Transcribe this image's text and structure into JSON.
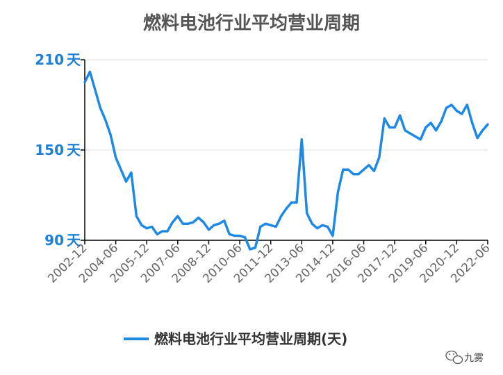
{
  "chart_data": {
    "type": "line",
    "title": "燃料电池行业平均营业周期",
    "y_unit": "天",
    "ylim": [
      90,
      210
    ],
    "yticks": [
      210,
      150,
      90
    ],
    "x_tick_labels": [
      "2002-12",
      "2004-06",
      "2005-12",
      "2007-06",
      "2008-12",
      "2010-06",
      "2011-12",
      "2013-06",
      "2014-12",
      "2016-06",
      "2017-12",
      "2019-06",
      "2020-12",
      "2022-06"
    ],
    "grid": true,
    "legend_position": "bottom",
    "series": [
      {
        "name": "燃料电池行业平均营业周期(天)",
        "color": "#1e88e5",
        "x": [
          "2002-12",
          "2003-03",
          "2003-06",
          "2003-09",
          "2003-12",
          "2004-03",
          "2004-06",
          "2004-09",
          "2004-12",
          "2005-03",
          "2005-06",
          "2005-09",
          "2005-12",
          "2006-03",
          "2006-06",
          "2006-09",
          "2006-12",
          "2007-03",
          "2007-06",
          "2007-09",
          "2007-12",
          "2008-03",
          "2008-06",
          "2008-09",
          "2008-12",
          "2009-03",
          "2009-06",
          "2009-09",
          "2009-12",
          "2010-03",
          "2010-06",
          "2010-09",
          "2010-12",
          "2011-03",
          "2011-06",
          "2011-09",
          "2011-12",
          "2012-03",
          "2012-06",
          "2012-09",
          "2012-12",
          "2013-03",
          "2013-06",
          "2013-09",
          "2013-12",
          "2014-03",
          "2014-06",
          "2014-09",
          "2014-12",
          "2015-03",
          "2015-06",
          "2015-09",
          "2015-12",
          "2016-03",
          "2016-06",
          "2016-09",
          "2016-12",
          "2017-03",
          "2017-06",
          "2017-09",
          "2017-12",
          "2018-03",
          "2018-06",
          "2018-09",
          "2018-12",
          "2019-03",
          "2019-06",
          "2019-09",
          "2019-12",
          "2020-03",
          "2020-06",
          "2020-09",
          "2020-12",
          "2021-03",
          "2021-06",
          "2021-09",
          "2021-12",
          "2022-03",
          "2022-06"
        ],
        "values": [
          195,
          202,
          190,
          178,
          170,
          160,
          145,
          137,
          129,
          135,
          106,
          100,
          98,
          99,
          94,
          96,
          96,
          102,
          106,
          101,
          101,
          102,
          105,
          102,
          97,
          100,
          101,
          103,
          94,
          93,
          93,
          92,
          84,
          85,
          99,
          101,
          100,
          99,
          106,
          111,
          115,
          115,
          157,
          108,
          101,
          98,
          100,
          99,
          93,
          122,
          137,
          137,
          134,
          134,
          137,
          140,
          136,
          145,
          171,
          165,
          165,
          173,
          163,
          161,
          159,
          157,
          165,
          168,
          163,
          169,
          178,
          180,
          176,
          174,
          180,
          168,
          158,
          163,
          167
        ]
      }
    ]
  },
  "legend": {
    "label": "燃料电池行业平均营业周期(天)"
  },
  "watermark": {
    "text": "九雾",
    "icon": "wechat-icon"
  }
}
